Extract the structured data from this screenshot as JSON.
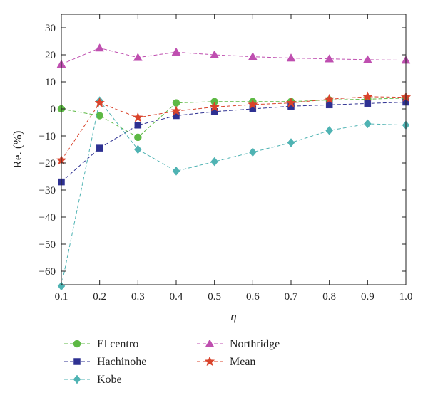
{
  "chart_data": {
    "type": "line",
    "title": "",
    "xlabel": "η",
    "ylabel": "Re. (%)",
    "xlim": [
      0.1,
      1.0
    ],
    "ylim": [
      -65,
      35
    ],
    "x": [
      0.1,
      0.2,
      0.3,
      0.4,
      0.5,
      0.6,
      0.7,
      0.8,
      0.9,
      1.0
    ],
    "xticks": [
      "0.1",
      "0.2",
      "0.3",
      "0.4",
      "0.5",
      "0.6",
      "0.7",
      "0.8",
      "0.9",
      "1.0"
    ],
    "yticks": [
      30,
      20,
      10,
      0,
      -10,
      -20,
      -30,
      -40,
      -50,
      -60
    ],
    "ytick_labels": [
      "30",
      "20",
      "10",
      "0",
      "−10",
      "−20",
      "−30",
      "−40",
      "−50",
      "−60"
    ],
    "grid": false,
    "legend_position": "bottom",
    "series": [
      {
        "name": "El centro",
        "color": "#5db944",
        "marker": "circle",
        "values": [
          0,
          -2.5,
          -10.5,
          2.2,
          2.7,
          2.7,
          2.7,
          3.3,
          3.6,
          4.0
        ]
      },
      {
        "name": "Hachinohe",
        "color": "#2e3192",
        "marker": "square",
        "values": [
          -27,
          -14.5,
          -6,
          -2.5,
          -1,
          0,
          1,
          1.5,
          2,
          2.5
        ]
      },
      {
        "name": "Kobe",
        "color": "#4fb3b3",
        "marker": "diamond",
        "values": [
          -65.5,
          3,
          -15,
          -23,
          -19.5,
          -16,
          -12.5,
          -8,
          -5.5,
          -6
        ]
      },
      {
        "name": "Northridge",
        "color": "#bf4fb0",
        "marker": "triangle",
        "values": [
          16.5,
          22.5,
          19,
          21,
          20,
          19.3,
          18.8,
          18.5,
          18.2,
          18
        ]
      },
      {
        "name": "Mean",
        "color": "#d9432b",
        "marker": "star",
        "values": [
          -19,
          2.2,
          -3.2,
          -0.8,
          0.7,
          1.6,
          2.2,
          3.6,
          4.5,
          4.3
        ]
      }
    ]
  }
}
